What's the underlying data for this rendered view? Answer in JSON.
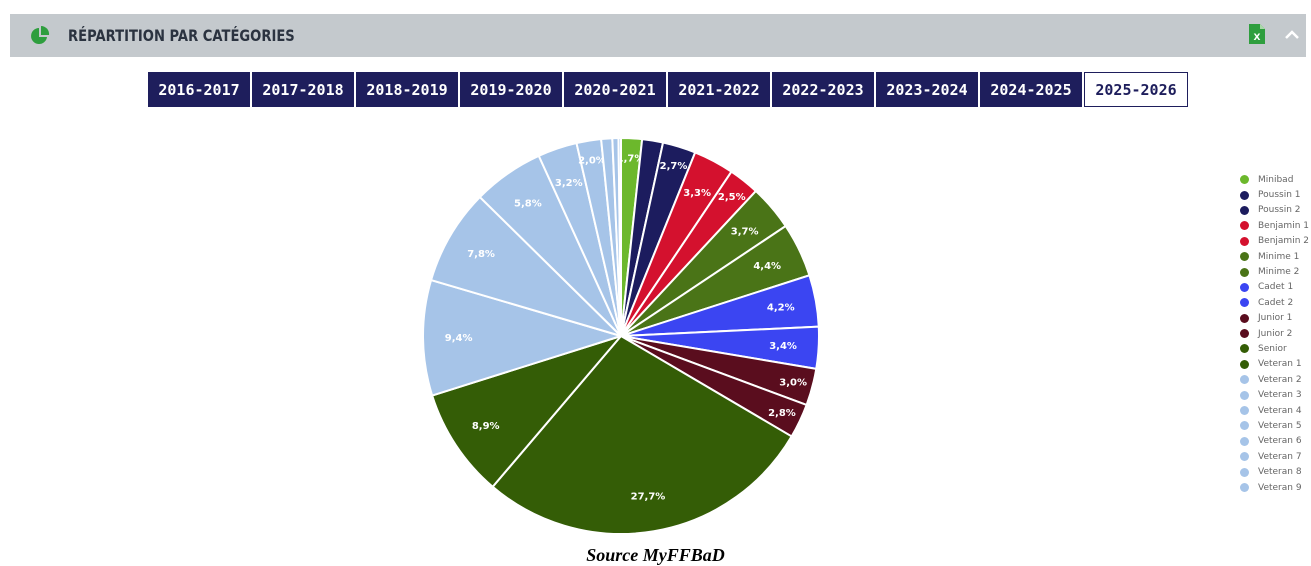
{
  "header": {
    "title": "RÉPARTITION PAR CATÉGORIES",
    "icons": [
      "pie-chart-icon",
      "excel-export-icon",
      "chevron-up-icon"
    ],
    "accent_color": "#2e9e3e"
  },
  "seasons": {
    "items": [
      "2016-2017",
      "2017-2018",
      "2018-2019",
      "2019-2020",
      "2020-2021",
      "2021-2022",
      "2022-2023",
      "2023-2024",
      "2024-2025",
      "2025-2026"
    ],
    "active": "2025-2026"
  },
  "chart_data": {
    "type": "pie",
    "title": "",
    "legend_position": "right",
    "categories": [
      "Minibad",
      "Poussin 1",
      "Poussin 2",
      "Benjamin 1",
      "Benjamin 2",
      "Minime 1",
      "Minime 2",
      "Cadet 1",
      "Cadet 2",
      "Junior 1",
      "Junior 2",
      "Senior",
      "Veteran 1",
      "Veteran 2",
      "Veteran 3",
      "Veteran 4",
      "Veteran 5",
      "Veteran 6",
      "Veteran 7",
      "Veteran 8",
      "Veteran 9"
    ],
    "values": [
      1.7,
      1.7,
      2.7,
      3.3,
      2.5,
      3.7,
      4.4,
      4.2,
      3.4,
      3.0,
      2.8,
      27.7,
      8.9,
      9.4,
      7.8,
      5.8,
      3.2,
      2.0,
      0.9,
      0.5,
      0.2
    ],
    "data_labels": [
      "1,7%",
      "",
      "2,7%",
      "3,3%",
      "2,5%",
      "3,7%",
      "4,4%",
      "4,2%",
      "3,4%",
      "3,0%",
      "2,8%",
      "27,7%",
      "8,9%",
      "9,4%",
      "7,8%",
      "5,8%",
      "3,2%",
      "2,0%",
      "",
      "",
      ""
    ],
    "colors": [
      "#6cb82c",
      "#1c1c5e",
      "#1c1c5e",
      "#d4112e",
      "#d4112e",
      "#4a7417",
      "#4a7417",
      "#3b45f2",
      "#3b45f2",
      "#5a0d1e",
      "#5a0d1e",
      "#345d06",
      "#345d06",
      "#a6c4e8",
      "#a6c4e8",
      "#a6c4e8",
      "#a6c4e8",
      "#a6c4e8",
      "#a6c4e8",
      "#a6c4e8",
      "#a6c4e8"
    ]
  },
  "source": "Source MyFFBaD"
}
